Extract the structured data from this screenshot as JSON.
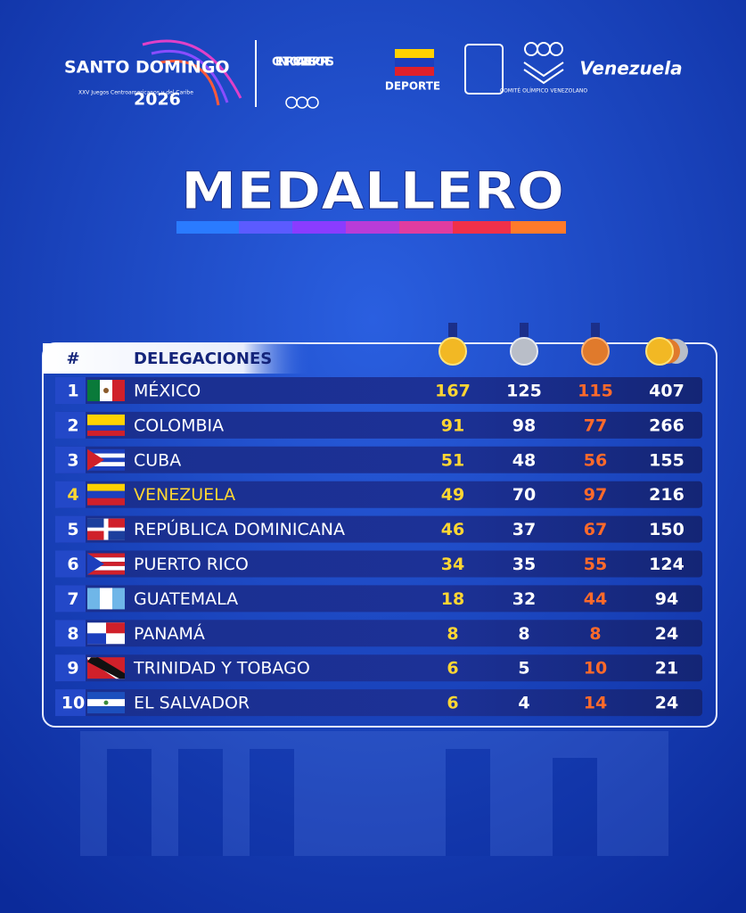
{
  "header": {
    "logo_top": "SANTO DOMINGO",
    "logo_sub": "XXV Juegos Centroamericanos y del Caribe",
    "logo_year": "2026",
    "centro_caribe": "CENTRO CARIBE SPORTS",
    "deporte": "DEPORTE",
    "comite": "COMITÉ OLÍMPICO VENEZOLANO",
    "venezuela": "Venezuela"
  },
  "title": "MEDALLERO",
  "table": {
    "columns": [
      "#",
      "DELEGACIONES"
    ],
    "rows": [
      [
        1,
        "MÉXICO",
        167,
        125,
        115,
        407
      ],
      [
        2,
        "COLOMBIA",
        91,
        98,
        77,
        266
      ],
      [
        3,
        "CUBA",
        51,
        48,
        56,
        155
      ],
      [
        4,
        "VENEZUELA",
        49,
        70,
        97,
        216
      ],
      [
        5,
        "REPÚBLICA DOMINICANA",
        46,
        37,
        67,
        150
      ],
      [
        6,
        "PUERTO RICO",
        34,
        35,
        55,
        124
      ],
      [
        7,
        "GUATEMALA",
        18,
        32,
        44,
        94
      ],
      [
        8,
        "PANAMÁ",
        8,
        8,
        8,
        24
      ],
      [
        9,
        "TRINIDAD Y TOBAGO",
        6,
        5,
        10,
        21
      ],
      [
        10,
        "EL SALVADOR",
        6,
        4,
        14,
        24
      ]
    ]
  }
}
